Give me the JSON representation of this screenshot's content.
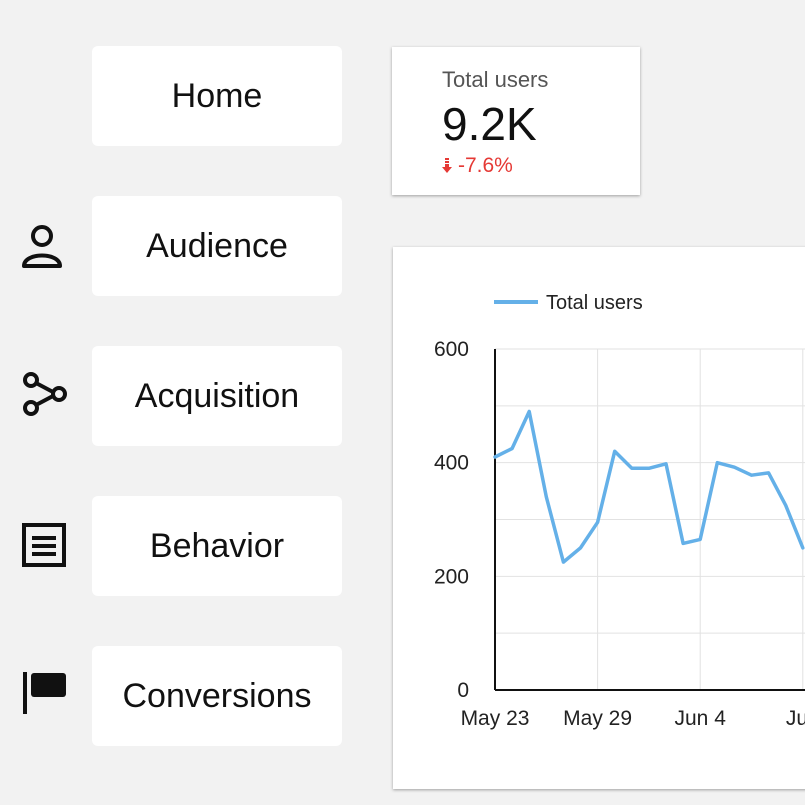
{
  "nav": {
    "items": [
      {
        "label": "Home",
        "icon": "none"
      },
      {
        "label": "Audience",
        "icon": "person-icon"
      },
      {
        "label": "Acquisition",
        "icon": "share-nodes-icon"
      },
      {
        "label": "Behavior",
        "icon": "document-lines-icon"
      },
      {
        "label": "Conversions",
        "icon": "flag-icon"
      }
    ]
  },
  "kpi": {
    "label": "Total users",
    "value": "9.2K",
    "delta": "-7.6%",
    "delta_color": "#e53935"
  },
  "chart_data": {
    "type": "line",
    "legend": "Total users",
    "legend_position": "top-left",
    "line_color": "#64b0e8",
    "grid": true,
    "ylim": [
      0,
      600
    ],
    "yticks": [
      "0",
      "200",
      "400",
      "600"
    ],
    "xticks": [
      "May 23",
      "May 29",
      "Jun 4",
      "Jun"
    ],
    "series": [
      {
        "name": "Total users",
        "values": [
          410,
          425,
          490,
          340,
          225,
          250,
          295,
          420,
          390,
          390,
          398,
          258,
          265,
          400,
          392,
          378,
          382,
          325,
          250
        ]
      }
    ]
  }
}
